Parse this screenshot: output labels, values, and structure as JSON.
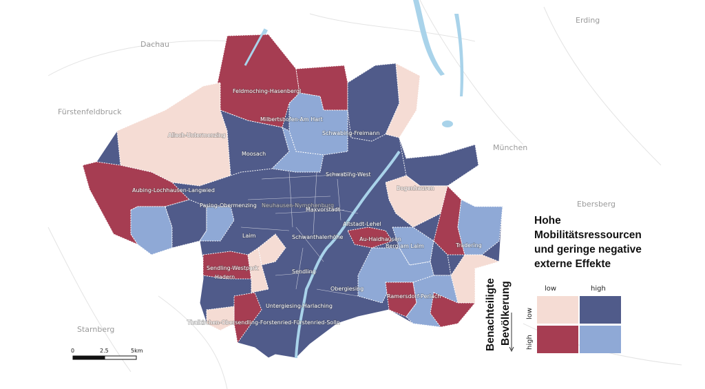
{
  "colors": {
    "low_low": "#f5dcd4",
    "low_high": "#505b8a",
    "high_low": "#a63d52",
    "high_high": "#8fa9d6",
    "water": "#a9d3ea",
    "border": "#d9d9d9"
  },
  "towns": {
    "dachau": "Dachau",
    "fuerstenfeldbruck": "Fürstenfeldbruck",
    "erding": "Erding",
    "muenchen": "München",
    "ebersberg": "Ebersberg",
    "starnberg": "Starnberg"
  },
  "districts": {
    "feldmoching": "Feldmoching-Hasenbergl",
    "milbertshofen": "Milbertshofen-Am Hart",
    "schwabing_freimann": "Schwabing-Freimann",
    "allach": "Allach-Untermenzing",
    "moosach": "Moosach",
    "schwabing_west": "Schwabing-West",
    "bogenhausen": "Bogenhausen",
    "aubing": "Aubing-Lochhausen-Langwied",
    "pasing": "Pasing-Obermenzing",
    "neuhausen": "Neuhausen-Nymphenburg",
    "maxvorstadt": "Maxvorstadt",
    "altstadt": "Altstadt-Lehel",
    "laim": "Laim",
    "schwanthalerhoehe": "Schwanthalerhöhe",
    "au_haidhausen": "Au-Haidhausen",
    "berg_am_laim": "Berg am Laim",
    "trudering": "Trudering",
    "sendling_westpark": "Sendling-Westpark",
    "hadern": "Hadern",
    "sendling": "Sendling",
    "obergiesing": "Obergiesing",
    "ramersdorf": "Ramersdorf-Perlach",
    "untergiesing": "Untergiesing-Harlaching",
    "thalkirchen": "Thalkirchen-Obersendling-Forstenried-Fürstenried-Solln"
  },
  "legend": {
    "title_lines": [
      "Hohe",
      "Mobilitätsressourcen",
      "und geringe negative",
      "externe Effekte"
    ],
    "y_axis_title": [
      "Benachteiligte",
      "Bevölkerung"
    ],
    "col_low": "low",
    "col_high": "high",
    "row_low": "low",
    "row_high": "high"
  },
  "scale_bar": {
    "labels": [
      "0",
      "2.5",
      "5km"
    ]
  }
}
